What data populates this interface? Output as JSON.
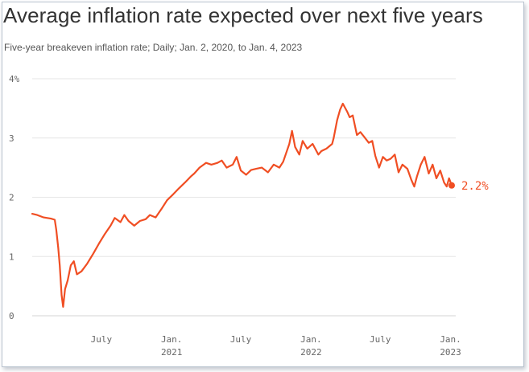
{
  "chart_data": {
    "type": "line",
    "title": "Average inflation rate expected over next five years",
    "subtitle": "Five-year breakeven inflation rate; Daily; Jan. 2, 2020, to Jan. 4, 2023",
    "xlabel": "",
    "ylabel": "",
    "ylim": [
      0,
      4
    ],
    "yticks": [
      "0",
      "1",
      "2",
      "3",
      "4%"
    ],
    "xticks": [
      {
        "date": "2020-07-01",
        "line1": "July",
        "line2": ""
      },
      {
        "date": "2021-01-01",
        "line1": "Jan.",
        "line2": "2021"
      },
      {
        "date": "2021-07-01",
        "line1": "July",
        "line2": ""
      },
      {
        "date": "2022-01-01",
        "line1": "Jan.",
        "line2": "2022"
      },
      {
        "date": "2022-07-01",
        "line1": "July",
        "line2": ""
      },
      {
        "date": "2023-01-01",
        "line1": "Jan.",
        "line2": "2023"
      }
    ],
    "xlim": [
      "2020-01-02",
      "2023-01-04"
    ],
    "grid": true,
    "color": "#f04e23",
    "end_label": "2.2%",
    "series": [
      {
        "x": [
          "2020-01-02",
          "2020-01-15",
          "2020-02-01",
          "2020-02-20",
          "2020-03-01",
          "2020-03-05",
          "2020-03-10",
          "2020-03-14",
          "2020-03-19",
          "2020-03-23",
          "2020-03-28",
          "2020-04-04",
          "2020-04-12",
          "2020-04-20",
          "2020-04-28",
          "2020-05-10",
          "2020-05-25",
          "2020-06-10",
          "2020-06-25",
          "2020-07-10",
          "2020-07-25",
          "2020-08-05",
          "2020-08-20",
          "2020-08-30",
          "2020-09-10",
          "2020-09-25",
          "2020-10-10",
          "2020-10-25",
          "2020-11-05",
          "2020-11-20",
          "2020-12-05",
          "2020-12-20",
          "2021-01-05",
          "2021-01-20",
          "2021-02-05",
          "2021-02-20",
          "2021-03-01",
          "2021-03-15",
          "2021-04-01",
          "2021-04-15",
          "2021-05-01",
          "2021-05-12",
          "2021-05-25",
          "2021-06-10",
          "2021-06-20",
          "2021-07-01",
          "2021-07-15",
          "2021-07-28",
          "2021-08-10",
          "2021-08-25",
          "2021-09-10",
          "2021-09-25",
          "2021-10-10",
          "2021-10-20",
          "2021-10-28",
          "2021-11-05",
          "2021-11-12",
          "2021-11-20",
          "2021-12-01",
          "2021-12-10",
          "2021-12-22",
          "2022-01-05",
          "2022-01-20",
          "2022-01-28",
          "2022-02-10",
          "2022-02-25",
          "2022-03-01",
          "2022-03-10",
          "2022-03-18",
          "2022-03-25",
          "2022-04-05",
          "2022-04-12",
          "2022-04-20",
          "2022-05-01",
          "2022-05-10",
          "2022-05-20",
          "2022-06-01",
          "2022-06-10",
          "2022-06-18",
          "2022-06-28",
          "2022-07-08",
          "2022-07-18",
          "2022-07-28",
          "2022-08-08",
          "2022-08-18",
          "2022-08-28",
          "2022-09-10",
          "2022-09-20",
          "2022-09-28",
          "2022-10-05",
          "2022-10-15",
          "2022-10-25",
          "2022-11-05",
          "2022-11-15",
          "2022-11-25",
          "2022-12-05",
          "2022-12-15",
          "2022-12-22",
          "2022-12-28",
          "2023-01-04"
        ],
        "y": [
          1.72,
          1.7,
          1.66,
          1.64,
          1.62,
          1.45,
          1.15,
          0.85,
          0.35,
          0.15,
          0.45,
          0.6,
          0.85,
          0.92,
          0.7,
          0.75,
          0.88,
          1.05,
          1.22,
          1.38,
          1.52,
          1.65,
          1.58,
          1.7,
          1.6,
          1.52,
          1.6,
          1.63,
          1.7,
          1.66,
          1.8,
          1.95,
          2.05,
          2.15,
          2.25,
          2.35,
          2.4,
          2.5,
          2.58,
          2.55,
          2.58,
          2.62,
          2.5,
          2.55,
          2.68,
          2.45,
          2.38,
          2.46,
          2.48,
          2.5,
          2.42,
          2.55,
          2.5,
          2.6,
          2.75,
          2.9,
          3.12,
          2.85,
          2.72,
          2.95,
          2.82,
          2.9,
          2.72,
          2.78,
          2.82,
          2.9,
          3.0,
          3.3,
          3.48,
          3.58,
          3.45,
          3.35,
          3.38,
          3.05,
          3.1,
          3.02,
          2.92,
          2.95,
          2.7,
          2.5,
          2.68,
          2.62,
          2.65,
          2.72,
          2.42,
          2.55,
          2.48,
          2.3,
          2.18,
          2.35,
          2.55,
          2.68,
          2.4,
          2.55,
          2.32,
          2.45,
          2.25,
          2.18,
          2.32,
          2.2
        ]
      }
    ]
  }
}
